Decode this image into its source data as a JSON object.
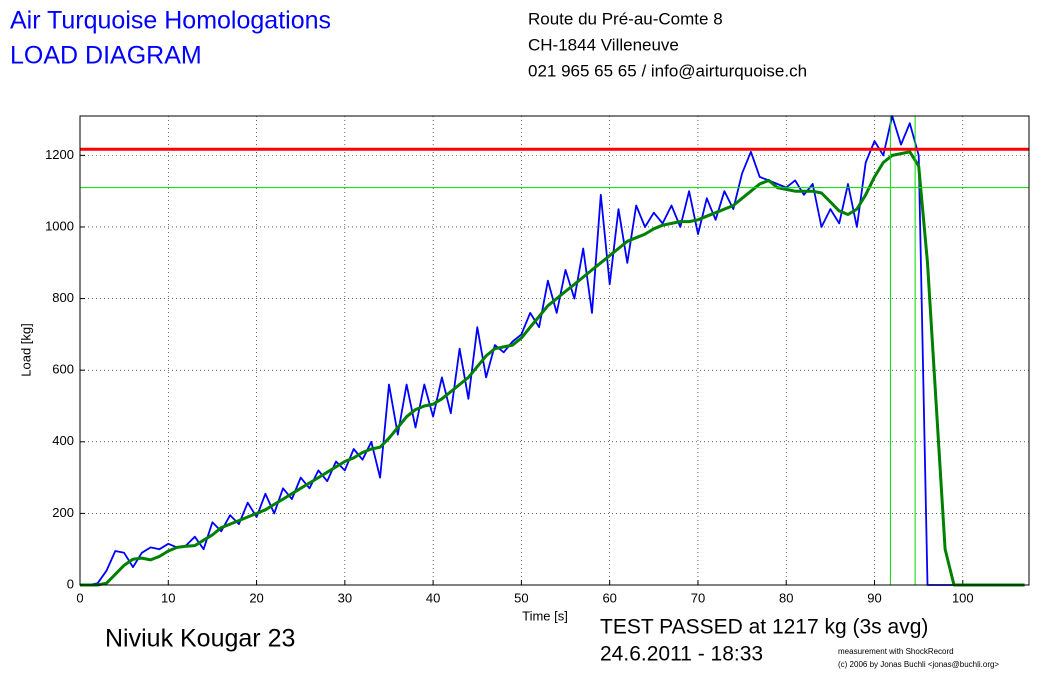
{
  "chart_data": {
    "type": "line",
    "title": "Air Turquoise Homologations",
    "subtitle": "LOAD DIAGRAM",
    "address": [
      "Route du Pré-au-Comte 8",
      "CH-1844 Villeneuve",
      "021 965 65 65 / info@airturquoise.ch"
    ],
    "glider": "Niviuk Kougar 23",
    "result": "TEST PASSED at 1217 kg (3s avg)",
    "date": "24.6.2011 - 18:33",
    "credits": [
      "measurement with ShockRecord",
      "(c) 2006 by Jonas Buchli <jonas@buchli.org>"
    ],
    "x_label": "Time [s]",
    "y_label": "Load [kg]",
    "xlim": [
      0,
      107.5
    ],
    "ylim": [
      0,
      1310
    ],
    "xticks": [
      0,
      10,
      20,
      30,
      40,
      50,
      60,
      70,
      80,
      90,
      100
    ],
    "yticks": [
      0,
      200,
      400,
      600,
      800,
      1000,
      1200
    ],
    "grid": true,
    "x": [
      0,
      1,
      2,
      3,
      4,
      5,
      6,
      7,
      8,
      9,
      10,
      11,
      12,
      13,
      14,
      15,
      16,
      17,
      18,
      19,
      20,
      21,
      22,
      23,
      24,
      25,
      26,
      27,
      28,
      29,
      30,
      31,
      32,
      33,
      34,
      35,
      36,
      37,
      38,
      39,
      40,
      41,
      42,
      43,
      44,
      45,
      46,
      47,
      48,
      49,
      50,
      51,
      52,
      53,
      54,
      55,
      56,
      57,
      58,
      59,
      60,
      61,
      62,
      63,
      64,
      65,
      66,
      67,
      68,
      69,
      70,
      71,
      72,
      73,
      74,
      75,
      76,
      77,
      78,
      79,
      80,
      81,
      82,
      83,
      84,
      85,
      86,
      87,
      88,
      89,
      90,
      91,
      92,
      93,
      94,
      95,
      96,
      97,
      98,
      99,
      100,
      101,
      102,
      103,
      104,
      105,
      106,
      107
    ],
    "series": [
      {
        "color": "#0000ff",
        "values": [
          0,
          0,
          5,
          40,
          95,
          90,
          50,
          90,
          105,
          100,
          115,
          105,
          110,
          135,
          100,
          175,
          150,
          195,
          170,
          230,
          190,
          255,
          200,
          270,
          240,
          300,
          270,
          320,
          290,
          345,
          320,
          380,
          350,
          400,
          300,
          560,
          420,
          560,
          440,
          560,
          470,
          580,
          480,
          660,
          520,
          720,
          580,
          670,
          650,
          680,
          700,
          760,
          720,
          850,
          760,
          880,
          800,
          940,
          760,
          1090,
          840,
          1050,
          900,
          1060,
          1000,
          1040,
          1010,
          1060,
          1000,
          1100,
          980,
          1080,
          1020,
          1100,
          1050,
          1150,
          1210,
          1140,
          1130,
          1120,
          1110,
          1130,
          1090,
          1120,
          1000,
          1050,
          1010,
          1120,
          1000,
          1180,
          1240,
          1200,
          1310,
          1230,
          1290,
          1200,
          0,
          0,
          0,
          0,
          0,
          0,
          0,
          0,
          0,
          0,
          0,
          0
        ]
      },
      {
        "color": "#008000",
        "values": [
          0,
          0,
          0,
          5,
          30,
          55,
          72,
          75,
          70,
          80,
          95,
          105,
          108,
          110,
          125,
          140,
          160,
          170,
          180,
          190,
          200,
          210,
          225,
          240,
          255,
          270,
          285,
          300,
          315,
          330,
          345,
          355,
          370,
          380,
          385,
          410,
          440,
          470,
          490,
          500,
          505,
          520,
          540,
          560,
          580,
          610,
          640,
          660,
          665,
          670,
          690,
          720,
          750,
          780,
          800,
          820,
          840,
          860,
          880,
          900,
          920,
          940,
          960,
          970,
          980,
          995,
          1005,
          1010,
          1015,
          1015,
          1020,
          1030,
          1040,
          1050,
          1060,
          1080,
          1100,
          1120,
          1130,
          1110,
          1105,
          1100,
          1100,
          1100,
          1095,
          1070,
          1045,
          1035,
          1050,
          1090,
          1140,
          1180,
          1200,
          1205,
          1210,
          1170,
          900,
          500,
          100,
          0,
          0,
          0,
          0,
          0,
          0,
          0,
          0,
          0
        ]
      }
    ],
    "hlines": [
      {
        "value": 1217,
        "color": "#ff0000"
      },
      {
        "value": 1110,
        "color": "#00dd00"
      }
    ],
    "vlines": [
      {
        "value": 91.8,
        "color": "#00dd00"
      },
      {
        "value": 94.6,
        "color": "#00dd00"
      }
    ]
  }
}
